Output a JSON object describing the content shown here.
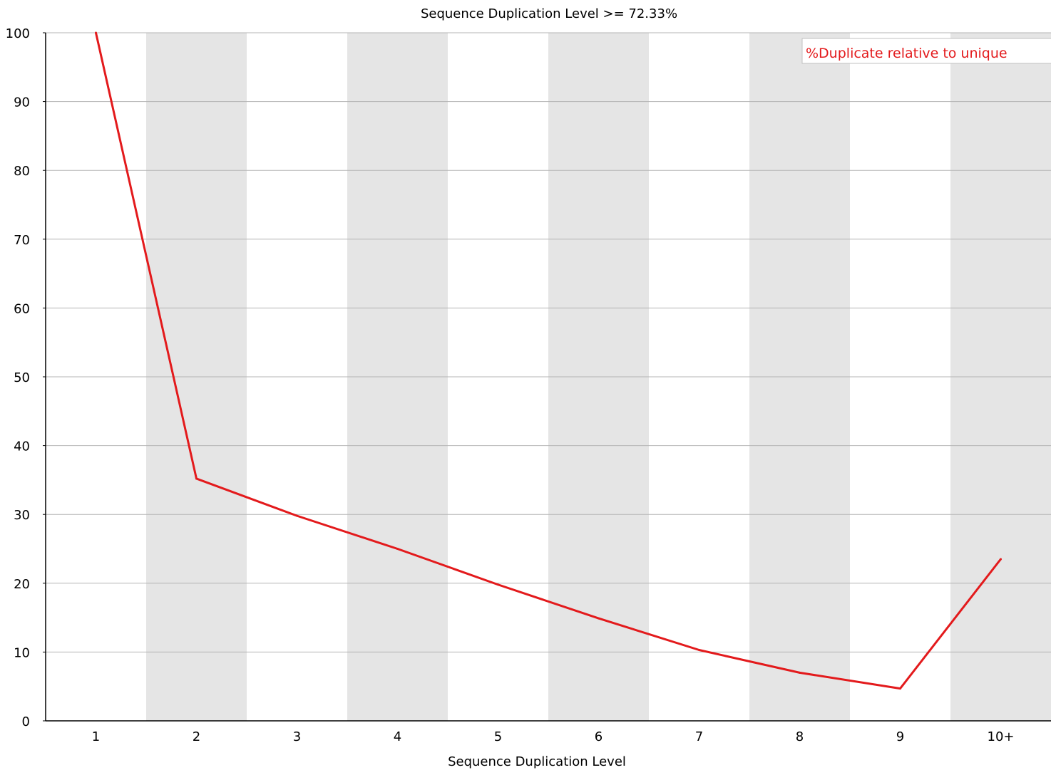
{
  "chart_data": {
    "type": "line",
    "title": "Sequence Duplication Level >= 72.33%",
    "xlabel": "Sequence Duplication Level",
    "ylabel": "",
    "categories": [
      "1",
      "2",
      "3",
      "4",
      "5",
      "6",
      "7",
      "8",
      "9",
      "10+"
    ],
    "ylim": [
      0,
      100
    ],
    "yticks": [
      "0",
      "10",
      "20",
      "30",
      "40",
      "50",
      "60",
      "70",
      "80",
      "90",
      "100"
    ],
    "grid": true,
    "alternating_bands": true,
    "legend_position": "top-right",
    "series": [
      {
        "name": "%Duplicate relative to unique",
        "color": "#e31a1c",
        "values": [
          100,
          35.2,
          29.8,
          25.0,
          19.8,
          14.9,
          10.3,
          7.0,
          4.7,
          23.5
        ]
      }
    ]
  },
  "colors": {
    "band": "#e5e5e5",
    "grid": "#b4b4b4",
    "axis": "#000000",
    "line": "#e31a1c"
  }
}
